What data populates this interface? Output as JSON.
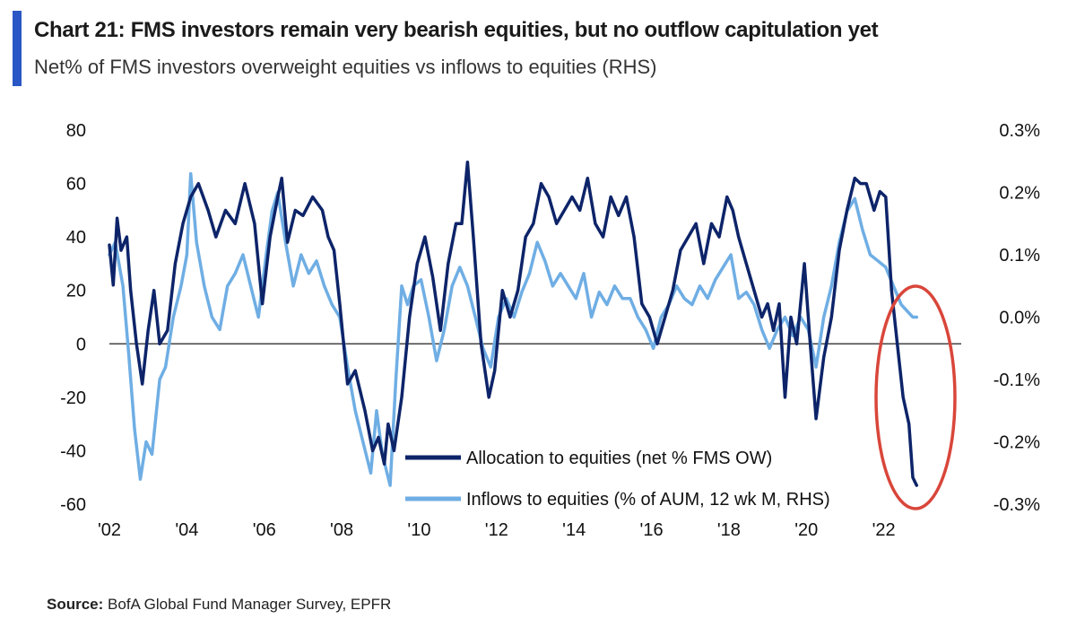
{
  "header": {
    "title": "Chart 21: FMS investors remain very bearish equities, but no outflow capitulation yet",
    "subtitle": "Net% of FMS investors overweight equities vs inflows to equities (RHS)"
  },
  "footer": {
    "source_label": "Source:",
    "source_text": "BofA Global Fund Manager Survey, EPFR"
  },
  "colors": {
    "accent": "#2A56C6",
    "allocation": "#0D2469",
    "inflows": "#6FAEE4",
    "highlight_circle": "#D9463A",
    "zero_line": "#444444"
  },
  "chart_data": {
    "type": "line",
    "x_tick_labels": [
      "'02",
      "'04",
      "'06",
      "'08",
      "'10",
      "'12",
      "'14",
      "'16",
      "'18",
      "'20",
      "'22"
    ],
    "x_ticks": [
      2002,
      2004,
      2006,
      2008,
      2010,
      2012,
      2014,
      2016,
      2018,
      2020,
      2022
    ],
    "xlim": [
      2002,
      2024
    ],
    "y_left": {
      "lim": [
        -60,
        80
      ],
      "ticks": [
        -60,
        -40,
        -20,
        0,
        20,
        40,
        60,
        80
      ],
      "tick_labels": [
        "-60",
        "-40",
        "-20",
        "0",
        "20",
        "40",
        "60",
        "80"
      ]
    },
    "y_right": {
      "lim": [
        -0.3,
        0.3
      ],
      "ticks": [
        -0.3,
        -0.2,
        -0.1,
        0.0,
        0.1,
        0.2,
        0.3
      ],
      "tick_labels": [
        "-0.3%",
        "-0.2%",
        "-0.1%",
        "0.0%",
        "0.1%",
        "0.2%",
        "0.3%"
      ]
    },
    "legend_position": "bottom-center",
    "series": [
      {
        "name": "Allocation to equities (net % FMS OW)",
        "axis": "left",
        "points": [
          [
            2002.0,
            37
          ],
          [
            2002.1,
            22
          ],
          [
            2002.2,
            47
          ],
          [
            2002.3,
            35
          ],
          [
            2002.45,
            40
          ],
          [
            2002.55,
            20
          ],
          [
            2002.7,
            0
          ],
          [
            2002.85,
            -15
          ],
          [
            2003.0,
            5
          ],
          [
            2003.15,
            20
          ],
          [
            2003.3,
            0
          ],
          [
            2003.5,
            5
          ],
          [
            2003.7,
            30
          ],
          [
            2003.9,
            45
          ],
          [
            2004.1,
            55
          ],
          [
            2004.3,
            60
          ],
          [
            2004.55,
            50
          ],
          [
            2004.75,
            40
          ],
          [
            2005.0,
            50
          ],
          [
            2005.25,
            45
          ],
          [
            2005.5,
            60
          ],
          [
            2005.75,
            45
          ],
          [
            2005.95,
            15
          ],
          [
            2006.15,
            40
          ],
          [
            2006.35,
            55
          ],
          [
            2006.45,
            62
          ],
          [
            2006.6,
            38
          ],
          [
            2006.8,
            50
          ],
          [
            2007.0,
            48
          ],
          [
            2007.25,
            55
          ],
          [
            2007.5,
            50
          ],
          [
            2007.65,
            40
          ],
          [
            2007.8,
            35
          ],
          [
            2007.95,
            15
          ],
          [
            2008.15,
            -15
          ],
          [
            2008.35,
            -10
          ],
          [
            2008.6,
            -25
          ],
          [
            2008.8,
            -40
          ],
          [
            2008.95,
            -35
          ],
          [
            2009.1,
            -45
          ],
          [
            2009.2,
            -30
          ],
          [
            2009.35,
            -40
          ],
          [
            2009.55,
            -20
          ],
          [
            2009.75,
            10
          ],
          [
            2009.95,
            30
          ],
          [
            2010.15,
            40
          ],
          [
            2010.35,
            25
          ],
          [
            2010.55,
            5
          ],
          [
            2010.75,
            30
          ],
          [
            2010.95,
            45
          ],
          [
            2011.1,
            45
          ],
          [
            2011.25,
            68
          ],
          [
            2011.4,
            40
          ],
          [
            2011.6,
            0
          ],
          [
            2011.8,
            -20
          ],
          [
            2011.95,
            -10
          ],
          [
            2012.15,
            20
          ],
          [
            2012.35,
            10
          ],
          [
            2012.55,
            20
          ],
          [
            2012.75,
            40
          ],
          [
            2012.95,
            45
          ],
          [
            2013.15,
            60
          ],
          [
            2013.35,
            55
          ],
          [
            2013.55,
            45
          ],
          [
            2013.75,
            50
          ],
          [
            2013.95,
            55
          ],
          [
            2014.15,
            50
          ],
          [
            2014.35,
            62
          ],
          [
            2014.55,
            45
          ],
          [
            2014.75,
            40
          ],
          [
            2014.95,
            55
          ],
          [
            2015.15,
            48
          ],
          [
            2015.35,
            55
          ],
          [
            2015.55,
            40
          ],
          [
            2015.75,
            15
          ],
          [
            2015.95,
            10
          ],
          [
            2016.15,
            0
          ],
          [
            2016.35,
            10
          ],
          [
            2016.55,
            20
          ],
          [
            2016.75,
            35
          ],
          [
            2016.95,
            40
          ],
          [
            2017.15,
            45
          ],
          [
            2017.35,
            30
          ],
          [
            2017.55,
            45
          ],
          [
            2017.75,
            40
          ],
          [
            2017.95,
            55
          ],
          [
            2018.1,
            50
          ],
          [
            2018.25,
            40
          ],
          [
            2018.45,
            30
          ],
          [
            2018.65,
            20
          ],
          [
            2018.85,
            10
          ],
          [
            2019.0,
            15
          ],
          [
            2019.15,
            5
          ],
          [
            2019.3,
            15
          ],
          [
            2019.45,
            -20
          ],
          [
            2019.6,
            10
          ],
          [
            2019.75,
            0
          ],
          [
            2019.95,
            30
          ],
          [
            2020.1,
            0
          ],
          [
            2020.25,
            -28
          ],
          [
            2020.45,
            -5
          ],
          [
            2020.65,
            10
          ],
          [
            2020.85,
            35
          ],
          [
            2021.05,
            50
          ],
          [
            2021.25,
            62
          ],
          [
            2021.4,
            60
          ],
          [
            2021.55,
            60
          ],
          [
            2021.75,
            50
          ],
          [
            2021.9,
            57
          ],
          [
            2022.05,
            55
          ],
          [
            2022.2,
            20
          ],
          [
            2022.35,
            0
          ],
          [
            2022.5,
            -20
          ],
          [
            2022.65,
            -30
          ],
          [
            2022.75,
            -50
          ],
          [
            2022.85,
            -53
          ]
        ]
      },
      {
        "name": "Inflows to equities (% of AUM, 12 wk M, RHS)",
        "axis": "right",
        "points": [
          [
            2002.0,
            0.1
          ],
          [
            2002.15,
            0.12
          ],
          [
            2002.35,
            0.05
          ],
          [
            2002.5,
            -0.06
          ],
          [
            2002.65,
            -0.18
          ],
          [
            2002.8,
            -0.26
          ],
          [
            2002.95,
            -0.2
          ],
          [
            2003.1,
            -0.22
          ],
          [
            2003.3,
            -0.1
          ],
          [
            2003.45,
            -0.08
          ],
          [
            2003.65,
            0.0
          ],
          [
            2003.85,
            0.05
          ],
          [
            2004.0,
            0.1
          ],
          [
            2004.1,
            0.23
          ],
          [
            2004.25,
            0.12
          ],
          [
            2004.45,
            0.05
          ],
          [
            2004.65,
            0.0
          ],
          [
            2004.85,
            -0.02
          ],
          [
            2005.05,
            0.05
          ],
          [
            2005.25,
            0.07
          ],
          [
            2005.45,
            0.1
          ],
          [
            2005.65,
            0.05
          ],
          [
            2005.85,
            0.0
          ],
          [
            2006.05,
            0.1
          ],
          [
            2006.2,
            0.17
          ],
          [
            2006.35,
            0.2
          ],
          [
            2006.55,
            0.12
          ],
          [
            2006.75,
            0.05
          ],
          [
            2006.95,
            0.1
          ],
          [
            2007.15,
            0.07
          ],
          [
            2007.35,
            0.09
          ],
          [
            2007.55,
            0.05
          ],
          [
            2007.75,
            0.02
          ],
          [
            2007.95,
            0.0
          ],
          [
            2008.15,
            -0.08
          ],
          [
            2008.35,
            -0.15
          ],
          [
            2008.55,
            -0.2
          ],
          [
            2008.75,
            -0.25
          ],
          [
            2008.9,
            -0.15
          ],
          [
            2009.05,
            -0.22
          ],
          [
            2009.25,
            -0.27
          ],
          [
            2009.4,
            -0.1
          ],
          [
            2009.55,
            0.05
          ],
          [
            2009.7,
            0.02
          ],
          [
            2009.85,
            0.05
          ],
          [
            2010.05,
            0.06
          ],
          [
            2010.25,
            0.0
          ],
          [
            2010.45,
            -0.07
          ],
          [
            2010.65,
            -0.02
          ],
          [
            2010.85,
            0.05
          ],
          [
            2011.05,
            0.08
          ],
          [
            2011.25,
            0.05
          ],
          [
            2011.45,
            0.0
          ],
          [
            2011.65,
            -0.05
          ],
          [
            2011.85,
            -0.08
          ],
          [
            2012.05,
            0.0
          ],
          [
            2012.25,
            0.03
          ],
          [
            2012.45,
            0.0
          ],
          [
            2012.65,
            0.04
          ],
          [
            2012.85,
            0.07
          ],
          [
            2013.05,
            0.12
          ],
          [
            2013.25,
            0.09
          ],
          [
            2013.45,
            0.05
          ],
          [
            2013.65,
            0.07
          ],
          [
            2013.85,
            0.05
          ],
          [
            2014.05,
            0.03
          ],
          [
            2014.25,
            0.07
          ],
          [
            2014.45,
            0.0
          ],
          [
            2014.65,
            0.04
          ],
          [
            2014.85,
            0.02
          ],
          [
            2015.05,
            0.05
          ],
          [
            2015.25,
            0.03
          ],
          [
            2015.45,
            0.03
          ],
          [
            2015.65,
            0.0
          ],
          [
            2015.85,
            -0.02
          ],
          [
            2016.05,
            -0.05
          ],
          [
            2016.25,
            0.0
          ],
          [
            2016.45,
            0.02
          ],
          [
            2016.65,
            0.05
          ],
          [
            2016.85,
            0.03
          ],
          [
            2017.05,
            0.02
          ],
          [
            2017.25,
            0.05
          ],
          [
            2017.45,
            0.03
          ],
          [
            2017.65,
            0.06
          ],
          [
            2017.85,
            0.08
          ],
          [
            2018.05,
            0.1
          ],
          [
            2018.25,
            0.03
          ],
          [
            2018.45,
            0.04
          ],
          [
            2018.65,
            0.02
          ],
          [
            2018.85,
            -0.02
          ],
          [
            2019.05,
            -0.05
          ],
          [
            2019.25,
            -0.02
          ],
          [
            2019.45,
            0.0
          ],
          [
            2019.65,
            -0.03
          ],
          [
            2019.85,
            0.0
          ],
          [
            2020.05,
            -0.02
          ],
          [
            2020.25,
            -0.08
          ],
          [
            2020.45,
            0.0
          ],
          [
            2020.65,
            0.05
          ],
          [
            2020.85,
            0.12
          ],
          [
            2021.05,
            0.17
          ],
          [
            2021.25,
            0.19
          ],
          [
            2021.45,
            0.14
          ],
          [
            2021.65,
            0.1
          ],
          [
            2021.85,
            0.09
          ],
          [
            2022.05,
            0.08
          ],
          [
            2022.25,
            0.05
          ],
          [
            2022.45,
            0.02
          ],
          [
            2022.6,
            0.01
          ],
          [
            2022.75,
            0.0
          ],
          [
            2022.85,
            0.0
          ]
        ]
      }
    ]
  }
}
